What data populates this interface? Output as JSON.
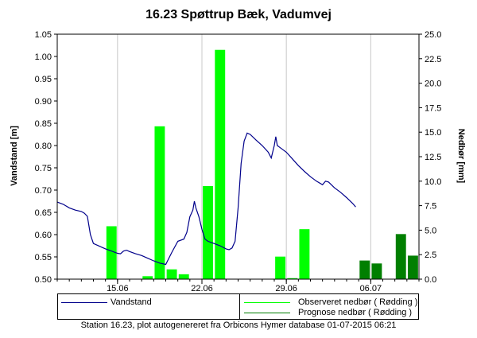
{
  "chart_data": {
    "type": "bar+line",
    "title": "16.23 Spøttrup Bæk, Vadumvej",
    "ylabel_left": "Vandstand [m]",
    "ylabel_right": "Nedbør [mm]",
    "ylim_left": [
      0.5,
      1.05
    ],
    "yticks_left": [
      "0.50",
      "0.55",
      "0.60",
      "0.65",
      "0.70",
      "0.75",
      "0.80",
      "0.85",
      "0.90",
      "0.95",
      "1.00",
      "1.05"
    ],
    "ylim_right": [
      0,
      25
    ],
    "yticks_right": [
      "0.0",
      "2.5",
      "5.0",
      "7.5",
      "10.0",
      "12.5",
      "15.0",
      "17.5",
      "20.0",
      "22.5",
      "25.0"
    ],
    "xlim_days": [
      "2015-06-10",
      "2015-07-10"
    ],
    "xtick_labels": [
      "15.06",
      "22.06",
      "29.06",
      "06.07"
    ],
    "grid": true,
    "legend_position": "bottom",
    "series": [
      {
        "name": "Vandstand",
        "kind": "line",
        "axis": "left",
        "color": "#00008b",
        "points": [
          [
            "2015-06-10 00:00",
            0.673
          ],
          [
            "2015-06-10 12:00",
            0.668
          ],
          [
            "2015-06-11 00:00",
            0.66
          ],
          [
            "2015-06-11 12:00",
            0.655
          ],
          [
            "2015-06-12 00:00",
            0.652
          ],
          [
            "2015-06-12 06:00",
            0.648
          ],
          [
            "2015-06-12 12:00",
            0.641
          ],
          [
            "2015-06-12 18:00",
            0.6
          ],
          [
            "2015-06-13 00:00",
            0.58
          ],
          [
            "2015-06-13 12:00",
            0.574
          ],
          [
            "2015-06-14 00:00",
            0.568
          ],
          [
            "2015-06-14 12:00",
            0.563
          ],
          [
            "2015-06-15 00:00",
            0.558
          ],
          [
            "2015-06-15 06:00",
            0.557
          ],
          [
            "2015-06-15 12:00",
            0.563
          ],
          [
            "2015-06-15 18:00",
            0.565
          ],
          [
            "2015-06-16 00:00",
            0.562
          ],
          [
            "2015-06-16 12:00",
            0.557
          ],
          [
            "2015-06-17 00:00",
            0.553
          ],
          [
            "2015-06-17 12:00",
            0.547
          ],
          [
            "2015-06-18 00:00",
            0.541
          ],
          [
            "2015-06-18 12:00",
            0.536
          ],
          [
            "2015-06-19 00:00",
            0.533
          ],
          [
            "2015-06-19 12:00",
            0.56
          ],
          [
            "2015-06-20 00:00",
            0.585
          ],
          [
            "2015-06-20 12:00",
            0.59
          ],
          [
            "2015-06-20 18:00",
            0.605
          ],
          [
            "2015-06-21 00:00",
            0.64
          ],
          [
            "2015-06-21 06:00",
            0.655
          ],
          [
            "2015-06-21 09:00",
            0.675
          ],
          [
            "2015-06-21 12:00",
            0.66
          ],
          [
            "2015-06-21 18:00",
            0.64
          ],
          [
            "2015-06-22 00:00",
            0.612
          ],
          [
            "2015-06-22 06:00",
            0.59
          ],
          [
            "2015-06-22 12:00",
            0.585
          ],
          [
            "2015-06-23 00:00",
            0.58
          ],
          [
            "2015-06-23 12:00",
            0.575
          ],
          [
            "2015-06-24 00:00",
            0.568
          ],
          [
            "2015-06-24 06:00",
            0.566
          ],
          [
            "2015-06-24 12:00",
            0.57
          ],
          [
            "2015-06-24 18:00",
            0.585
          ],
          [
            "2015-06-25 00:00",
            0.66
          ],
          [
            "2015-06-25 06:00",
            0.76
          ],
          [
            "2015-06-25 12:00",
            0.81
          ],
          [
            "2015-06-25 18:00",
            0.828
          ],
          [
            "2015-06-26 00:00",
            0.825
          ],
          [
            "2015-06-26 12:00",
            0.812
          ],
          [
            "2015-06-27 00:00",
            0.8
          ],
          [
            "2015-06-27 12:00",
            0.785
          ],
          [
            "2015-06-27 18:00",
            0.772
          ],
          [
            "2015-06-28 00:00",
            0.8
          ],
          [
            "2015-06-28 03:00",
            0.82
          ],
          [
            "2015-06-28 06:00",
            0.8
          ],
          [
            "2015-06-28 12:00",
            0.795
          ],
          [
            "2015-06-29 00:00",
            0.785
          ],
          [
            "2015-06-29 12:00",
            0.77
          ],
          [
            "2015-06-30 00:00",
            0.755
          ],
          [
            "2015-06-30 12:00",
            0.742
          ],
          [
            "2015-07-01 00:00",
            0.73
          ],
          [
            "2015-07-01 12:00",
            0.72
          ],
          [
            "2015-07-02 00:00",
            0.712
          ],
          [
            "2015-07-02 06:00",
            0.72
          ],
          [
            "2015-07-02 12:00",
            0.718
          ],
          [
            "2015-07-03 00:00",
            0.705
          ],
          [
            "2015-07-03 12:00",
            0.695
          ],
          [
            "2015-07-04 00:00",
            0.683
          ],
          [
            "2015-07-04 12:00",
            0.67
          ],
          [
            "2015-07-04 18:00",
            0.662
          ]
        ]
      },
      {
        "name": "Observeret nedbør ( Rødding )",
        "kind": "bar",
        "axis": "right",
        "color": "#00ff00",
        "points": [
          [
            "2015-06-14",
            5.4
          ],
          [
            "2015-06-17",
            0.3
          ],
          [
            "2015-06-18",
            15.6
          ],
          [
            "2015-06-19",
            1.0
          ],
          [
            "2015-06-20",
            0.5
          ],
          [
            "2015-06-22",
            9.5
          ],
          [
            "2015-06-23",
            23.4
          ],
          [
            "2015-06-28",
            2.3
          ],
          [
            "2015-06-29",
            0.1
          ],
          [
            "2015-06-30",
            5.1
          ]
        ]
      },
      {
        "name": "Prognose nedbør ( Rødding )",
        "kind": "bar",
        "axis": "right",
        "color": "#007f00",
        "points": [
          [
            "2015-07-05",
            1.9
          ],
          [
            "2015-07-06",
            1.6
          ],
          [
            "2015-07-08",
            4.6
          ],
          [
            "2015-07-09",
            2.4
          ]
        ]
      }
    ]
  },
  "legend": {
    "vandstand": "Vandstand",
    "observeret": "Observeret nedbør ( Rødding )",
    "prognose": "Prognose nedbør ( Rødding )"
  },
  "footer": "Station 16.23, plot autogenereret fra Orbicons Hymer database 01-07-2015 06:21"
}
